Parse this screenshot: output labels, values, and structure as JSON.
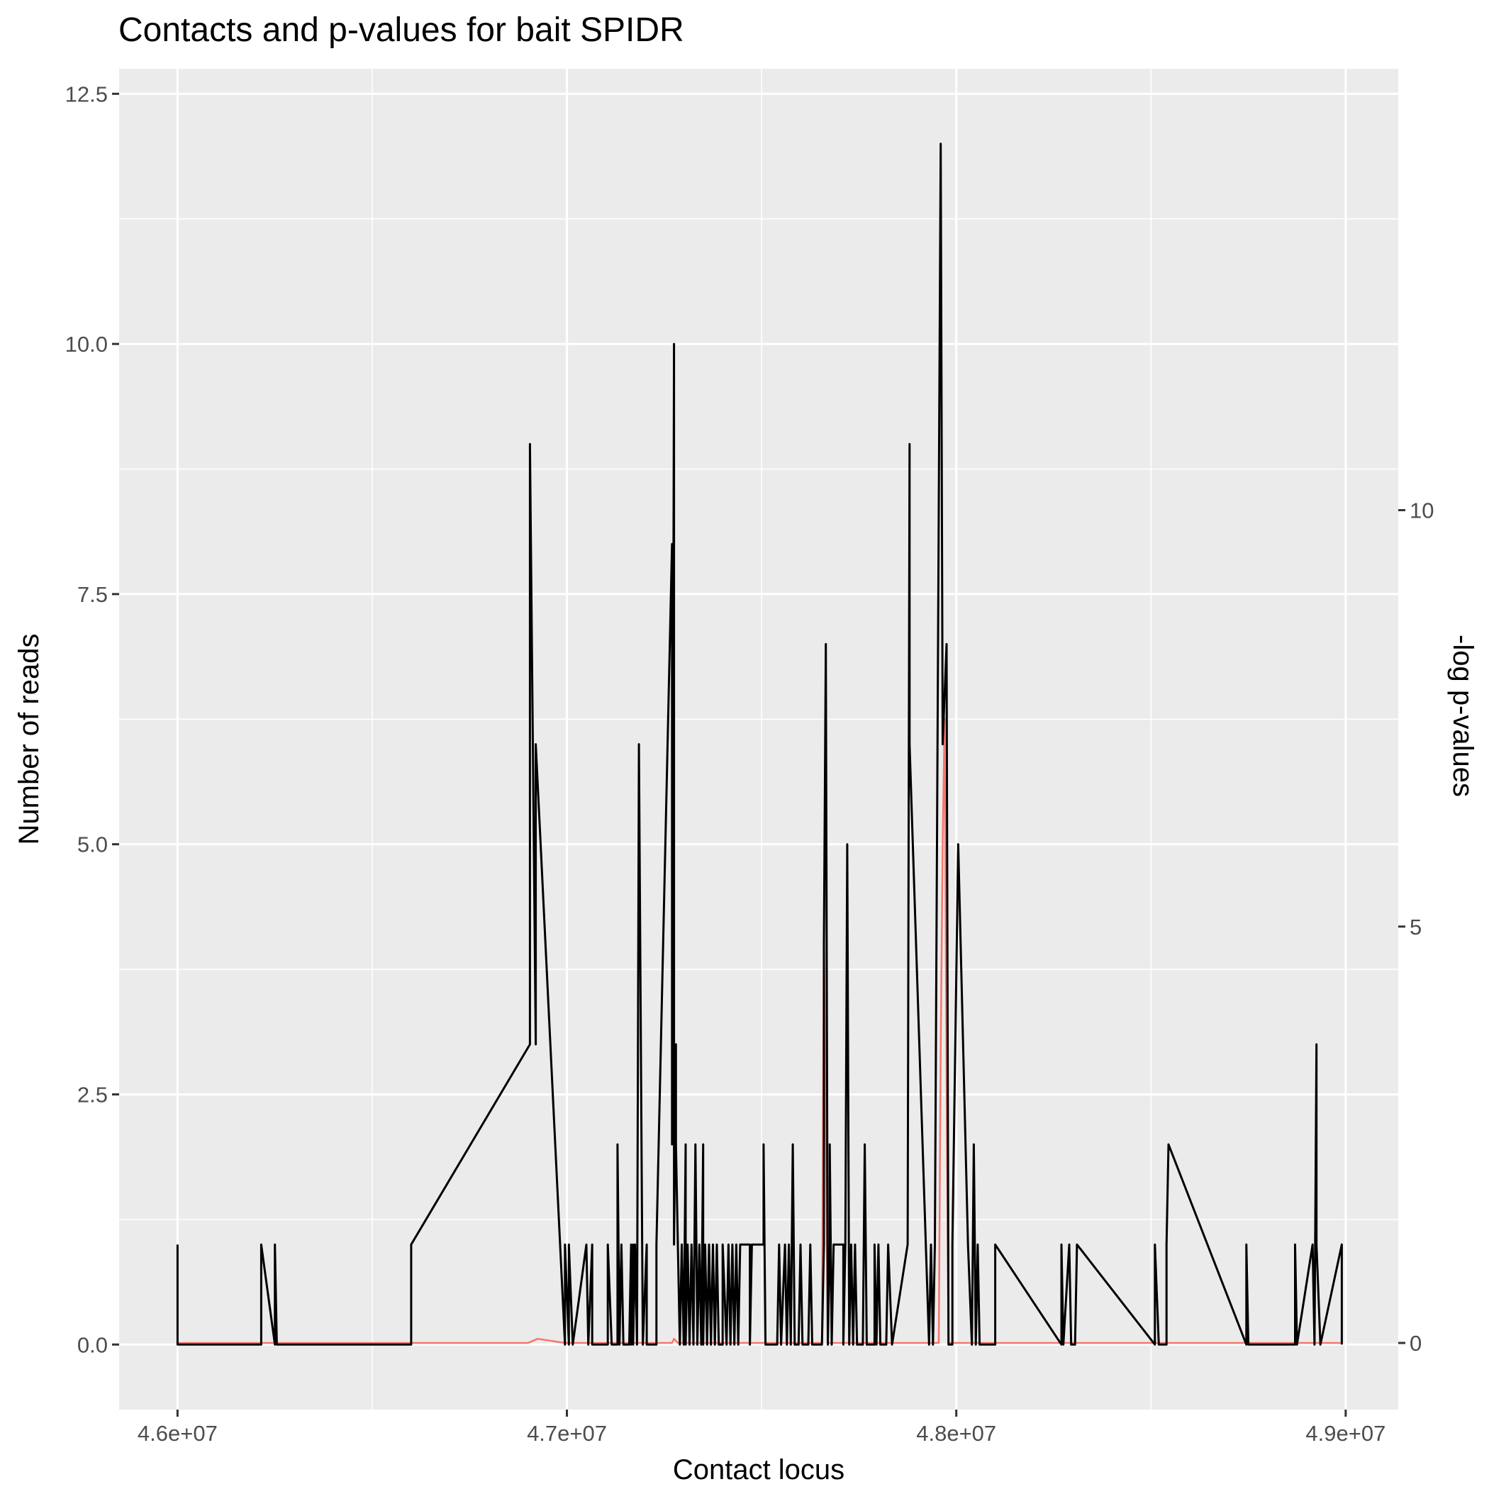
{
  "chart_data": {
    "type": "line",
    "title": "Contacts and p-values for bait SPIDR",
    "xlabel": "Contact locus",
    "ylabel": "Number of reads",
    "y2label": "-log p-values",
    "xlim": [
      45850000,
      49135000
    ],
    "ylim": [
      -0.65,
      12.75
    ],
    "y2lim": [
      -0.8,
      15.3
    ],
    "x_ticks": [
      46000000,
      47000000,
      48000000,
      49000000
    ],
    "x_tick_labels": [
      "4.6e+07",
      "4.7e+07",
      "4.8e+07",
      "4.9e+07"
    ],
    "y_ticks": [
      0,
      2.5,
      5,
      7.5,
      10,
      12.5
    ],
    "y_tick_labels": [
      "0.0",
      "2.5",
      "5.0",
      "7.5",
      "10.0",
      "12.5"
    ],
    "y2_ticks": [
      0,
      5,
      10
    ],
    "y2_tick_labels": [
      "0",
      "5",
      "10"
    ],
    "grid": true,
    "panel_background": "#ebebeb",
    "series": [
      {
        "axis": "left",
        "color": "#000000",
        "points": [
          [
            46000000,
            1
          ],
          [
            46000000,
            0
          ],
          [
            46215000,
            0
          ],
          [
            46215000,
            1
          ],
          [
            46250000,
            0
          ],
          [
            46250000,
            1
          ],
          [
            46255000,
            0
          ],
          [
            46600000,
            0
          ],
          [
            46600000,
            1
          ],
          [
            46905000,
            3
          ],
          [
            46905000,
            9
          ],
          [
            46920000,
            3
          ],
          [
            46920000,
            6
          ],
          [
            46995000,
            0
          ],
          [
            46995000,
            1
          ],
          [
            47005000,
            0
          ],
          [
            47005000,
            1
          ],
          [
            47015000,
            0
          ],
          [
            47050000,
            1
          ],
          [
            47055000,
            0
          ],
          [
            47065000,
            1
          ],
          [
            47065000,
            0
          ],
          [
            47105000,
            0
          ],
          [
            47105000,
            1
          ],
          [
            47115000,
            0
          ],
          [
            47130000,
            0
          ],
          [
            47130000,
            2
          ],
          [
            47135000,
            0
          ],
          [
            47140000,
            1
          ],
          [
            47145000,
            0
          ],
          [
            47160000,
            0
          ],
          [
            47165000,
            1
          ],
          [
            47165000,
            0
          ],
          [
            47170000,
            1
          ],
          [
            47170000,
            0
          ],
          [
            47175000,
            1
          ],
          [
            47180000,
            0
          ],
          [
            47185000,
            6
          ],
          [
            47195000,
            0
          ],
          [
            47205000,
            1
          ],
          [
            47205000,
            0
          ],
          [
            47230000,
            0
          ],
          [
            47230000,
            1
          ],
          [
            47270000,
            8
          ],
          [
            47270000,
            2
          ],
          [
            47275000,
            10
          ],
          [
            47275000,
            1
          ],
          [
            47280000,
            3
          ],
          [
            47280000,
            2
          ],
          [
            47285000,
            1
          ],
          [
            47290000,
            0
          ],
          [
            47295000,
            1
          ],
          [
            47300000,
            0
          ],
          [
            47305000,
            2
          ],
          [
            47305000,
            0
          ],
          [
            47310000,
            1
          ],
          [
            47315000,
            0
          ],
          [
            47320000,
            1
          ],
          [
            47325000,
            0
          ],
          [
            47330000,
            2
          ],
          [
            47335000,
            0
          ],
          [
            47340000,
            1
          ],
          [
            47345000,
            0
          ],
          [
            47350000,
            2
          ],
          [
            47350000,
            0
          ],
          [
            47355000,
            1
          ],
          [
            47360000,
            0
          ],
          [
            47365000,
            1
          ],
          [
            47370000,
            0
          ],
          [
            47375000,
            1
          ],
          [
            47380000,
            0
          ],
          [
            47385000,
            1
          ],
          [
            47390000,
            0
          ],
          [
            47400000,
            0
          ],
          [
            47400000,
            1
          ],
          [
            47410000,
            0
          ],
          [
            47415000,
            1
          ],
          [
            47420000,
            0
          ],
          [
            47425000,
            1
          ],
          [
            47430000,
            0
          ],
          [
            47435000,
            1
          ],
          [
            47440000,
            0
          ],
          [
            47445000,
            1
          ],
          [
            47470000,
            1
          ],
          [
            47470000,
            0
          ],
          [
            47475000,
            1
          ],
          [
            47505000,
            1
          ],
          [
            47505000,
            2
          ],
          [
            47510000,
            0
          ],
          [
            47540000,
            0
          ],
          [
            47545000,
            1
          ],
          [
            47550000,
            0
          ],
          [
            47560000,
            1
          ],
          [
            47565000,
            0
          ],
          [
            47570000,
            1
          ],
          [
            47575000,
            0
          ],
          [
            47580000,
            2
          ],
          [
            47585000,
            0
          ],
          [
            47595000,
            0
          ],
          [
            47600000,
            1
          ],
          [
            47605000,
            0
          ],
          [
            47620000,
            0
          ],
          [
            47625000,
            1
          ],
          [
            47630000,
            0
          ],
          [
            47655000,
            0
          ],
          [
            47660000,
            1
          ],
          [
            47660000,
            4
          ],
          [
            47665000,
            7
          ],
          [
            47670000,
            0
          ],
          [
            47675000,
            1
          ],
          [
            47675000,
            2
          ],
          [
            47680000,
            0
          ],
          [
            47685000,
            1
          ],
          [
            47710000,
            1
          ],
          [
            47710000,
            0
          ],
          [
            47715000,
            1
          ],
          [
            47720000,
            5
          ],
          [
            47725000,
            0
          ],
          [
            47730000,
            1
          ],
          [
            47735000,
            0
          ],
          [
            47740000,
            1
          ],
          [
            47745000,
            0
          ],
          [
            47760000,
            0
          ],
          [
            47765000,
            2
          ],
          [
            47770000,
            0
          ],
          [
            47790000,
            0
          ],
          [
            47790000,
            1
          ],
          [
            47795000,
            0
          ],
          [
            47800000,
            1
          ],
          [
            47805000,
            0
          ],
          [
            47820000,
            0
          ],
          [
            47825000,
            1
          ],
          [
            47835000,
            0
          ],
          [
            47875000,
            1
          ],
          [
            47880000,
            9
          ],
          [
            47880000,
            6
          ],
          [
            47930000,
            0
          ],
          [
            47935000,
            1
          ],
          [
            47940000,
            0
          ],
          [
            47945000,
            1
          ],
          [
            47960000,
            12
          ],
          [
            47965000,
            6
          ],
          [
            47975000,
            7
          ],
          [
            47980000,
            0
          ],
          [
            47990000,
            0
          ],
          [
            47990000,
            1
          ],
          [
            48005000,
            5
          ],
          [
            48030000,
            1
          ],
          [
            48040000,
            0
          ],
          [
            48045000,
            2
          ],
          [
            48050000,
            0
          ],
          [
            48055000,
            1
          ],
          [
            48060000,
            0
          ],
          [
            48100000,
            0
          ],
          [
            48100000,
            1
          ],
          [
            48270000,
            0
          ],
          [
            48270000,
            1
          ],
          [
            48275000,
            0
          ],
          [
            48290000,
            1
          ],
          [
            48295000,
            0
          ],
          [
            48305000,
            0
          ],
          [
            48310000,
            1
          ],
          [
            48510000,
            0
          ],
          [
            48510000,
            1
          ],
          [
            48520000,
            0
          ],
          [
            48540000,
            0
          ],
          [
            48540000,
            1
          ],
          [
            48545000,
            2
          ],
          [
            48745000,
            0
          ],
          [
            48745000,
            1
          ],
          [
            48750000,
            0
          ],
          [
            48870000,
            0
          ],
          [
            48870000,
            1
          ],
          [
            48875000,
            0
          ],
          [
            48915000,
            1
          ],
          [
            48920000,
            0
          ],
          [
            48925000,
            3
          ],
          [
            48925000,
            1
          ],
          [
            48935000,
            0
          ],
          [
            48990000,
            1
          ],
          [
            48990000,
            0
          ]
        ]
      },
      {
        "axis": "right",
        "color": "#f8766d",
        "points": [
          [
            46000000,
            0
          ],
          [
            46900000,
            0
          ],
          [
            46925000,
            0.05
          ],
          [
            46995000,
            0
          ],
          [
            47270000,
            0
          ],
          [
            47275000,
            0.05
          ],
          [
            47285000,
            0
          ],
          [
            47655000,
            0
          ],
          [
            47660000,
            5
          ],
          [
            47670000,
            0
          ],
          [
            47955000,
            0
          ],
          [
            47960000,
            3.5
          ],
          [
            47965000,
            6
          ],
          [
            47970000,
            7.5
          ],
          [
            47975000,
            3
          ],
          [
            47980000,
            0
          ],
          [
            48990000,
            0
          ]
        ]
      }
    ]
  }
}
